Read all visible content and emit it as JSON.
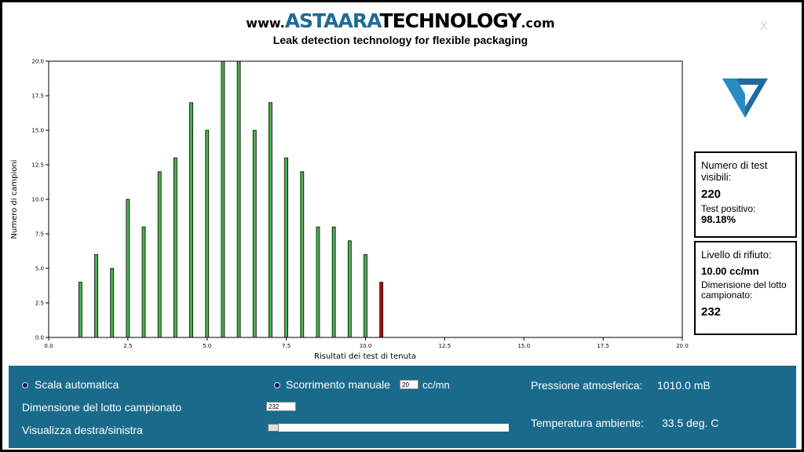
{
  "header": {
    "brand_prefix": "www.",
    "brand_name_a": "ASTAARA",
    "brand_name_b": "TECHNOLOGY",
    "brand_suffix": ".com",
    "subtitle": "Leak detection technology for flexible packaging"
  },
  "window": {
    "close_label": "X"
  },
  "logo": {
    "icon": "triangle-logo-icon",
    "color": "#1f6b9a"
  },
  "stats": {
    "visible_tests_label": "Numero di test visibili:",
    "visible_tests_value": "220",
    "positive_label": "Test positivo:",
    "positive_value": "98.18%",
    "reject_label": "Livello di rifiuto:",
    "reject_value": "10.00 cc/mn",
    "lot_label": "Dimensione del lotto campionato:",
    "lot_value": "232"
  },
  "chart_data": {
    "type": "bar",
    "xlabel": "Risultati dei test di tenuta",
    "ylabel": "Numero di campioni",
    "xlim": [
      0,
      20
    ],
    "ylim": [
      0,
      20
    ],
    "xticks": [
      "0.0",
      "2.5",
      "5.0",
      "7.5",
      "10.0",
      "12.5",
      "15.0",
      "17.5",
      "20.0"
    ],
    "yticks": [
      "0.0",
      "2.5",
      "5.0",
      "7.5",
      "10.0",
      "12.5",
      "15.0",
      "17.5",
      "20.0"
    ],
    "x": [
      1.0,
      1.5,
      2.0,
      2.5,
      3.0,
      3.5,
      4.0,
      4.5,
      5.0,
      5.5,
      6.0,
      6.5,
      7.0,
      7.5,
      8.0,
      8.5,
      9.0,
      9.5,
      10.0,
      10.5
    ],
    "values": [
      4,
      6,
      5,
      10,
      8,
      12,
      13,
      17,
      15,
      20,
      20,
      15,
      17,
      13,
      12,
      8,
      8,
      7,
      6,
      4
    ],
    "colors": {
      "pass": "#4caf50",
      "fail": "#b01010"
    },
    "reject_threshold": 10.0,
    "grid": false
  },
  "controls": {
    "auto_scale_label": "Scala automatica",
    "manual_scroll_label": "Scorrimento manuale",
    "manual_scroll_value": "20",
    "manual_scroll_unit": "cc/mn",
    "lot_size_label": "Dimensione del lotto campionato",
    "lot_size_value": "232",
    "view_lr_label": "Visualizza destra/sinistra",
    "pressure_label": "Pressione atmosferica:",
    "pressure_value": "1010.0 mB",
    "temp_label": "Temperatura ambiente:",
    "temp_value": "33.5 deg. C"
  }
}
